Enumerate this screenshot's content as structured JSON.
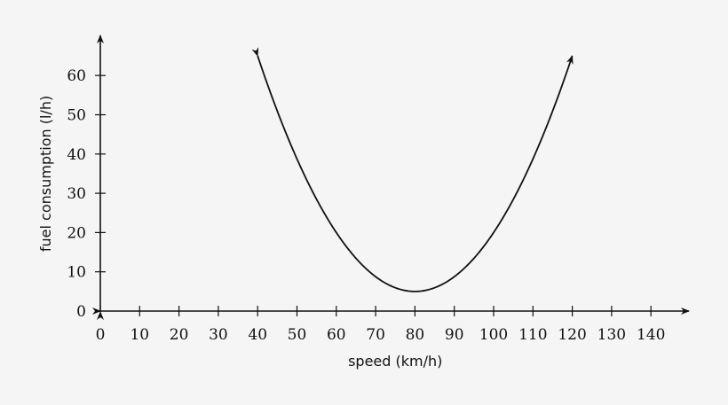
{
  "chart_data": {
    "type": "line",
    "title": "",
    "xlabel": "speed (km/h)",
    "ylabel": "fuel consumption (l/h)",
    "xlim": [
      0,
      150
    ],
    "ylim": [
      0,
      70
    ],
    "x_ticks": [
      0,
      10,
      20,
      30,
      40,
      50,
      60,
      70,
      80,
      90,
      100,
      110,
      120,
      130,
      140
    ],
    "y_ticks": [
      0,
      10,
      20,
      30,
      40,
      50,
      60
    ],
    "series": [
      {
        "name": "fuel consumption",
        "function": "y = 0.0375*(x-80)^2 + 5",
        "x_range": [
          40,
          120
        ],
        "x": [
          40,
          50,
          60,
          70,
          80,
          90,
          100,
          110,
          120
        ],
        "values": [
          65,
          38.75,
          20,
          8.75,
          5,
          8.75,
          20,
          38.75,
          65
        ]
      }
    ],
    "minimum": {
      "x": 80,
      "y": 5
    },
    "grid": false,
    "colors": {
      "background": "#f5f5f5",
      "ink": "#111111"
    }
  }
}
